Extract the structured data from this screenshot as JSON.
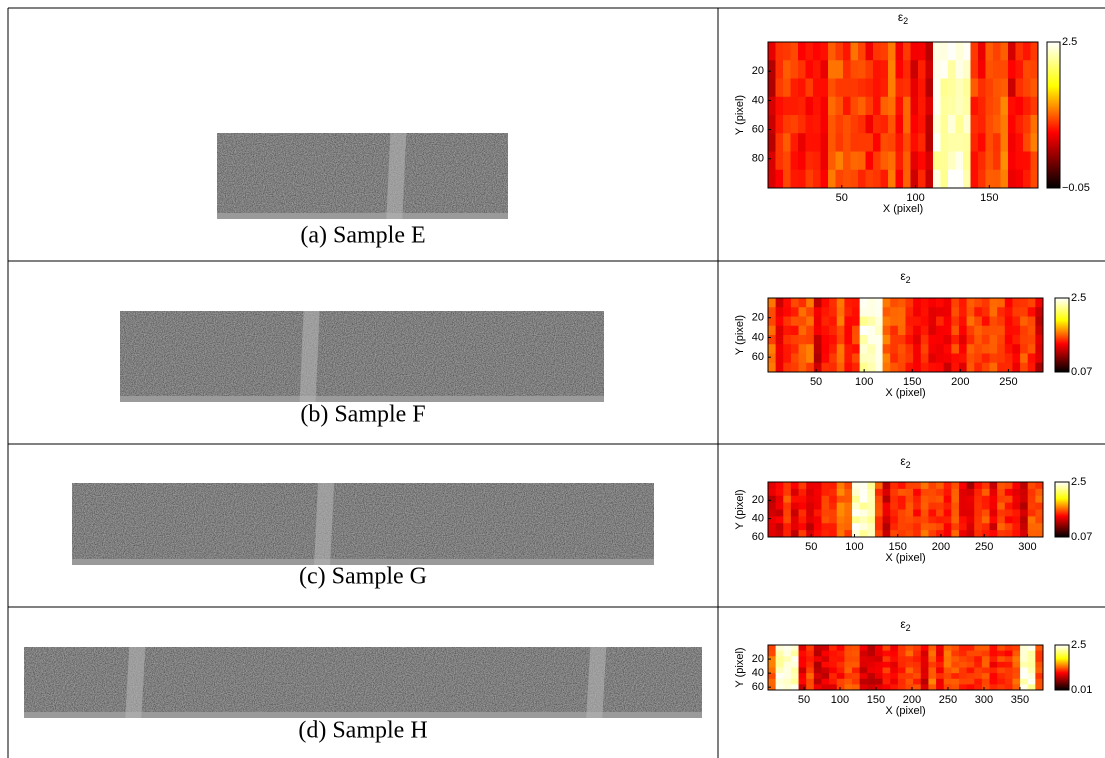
{
  "panels": [
    {
      "caption": "(a) Sample E",
      "heatmap": {
        "title": "ε",
        "title_sub": "2",
        "xlabel": "X (pixel)",
        "ylabel": "Y (pixel)",
        "xlim": [
          0,
          183
        ],
        "ylim": [
          0,
          100
        ],
        "xticks": [
          50,
          100,
          150
        ],
        "yticks": [
          20,
          40,
          60,
          80
        ],
        "colorbar_labels": [
          "2.5",
          "−0.05"
        ]
      }
    },
    {
      "caption": "(b) Sample F",
      "heatmap": {
        "title": "ε",
        "title_sub": "2",
        "xlabel": "X (pixel)",
        "ylabel": "Y (pixel)",
        "xlim": [
          0,
          286
        ],
        "ylim": [
          0,
          75
        ],
        "xticks": [
          50,
          100,
          150,
          200,
          250
        ],
        "yticks": [
          20,
          40,
          60
        ],
        "colorbar_labels": [
          "2.5",
          "0.07"
        ]
      }
    },
    {
      "caption": "(c) Sample G",
      "heatmap": {
        "title": "ε",
        "title_sub": "2",
        "xlabel": "X (pixel)",
        "ylabel": "Y (pixel)",
        "xlim": [
          0,
          318
        ],
        "ylim": [
          0,
          60
        ],
        "xticks": [
          50,
          100,
          150,
          200,
          250,
          300
        ],
        "yticks": [
          20,
          40,
          60
        ],
        "colorbar_labels": [
          "2.5",
          "0.07"
        ]
      }
    },
    {
      "caption": "(d) Sample H",
      "heatmap": {
        "title": "ε",
        "title_sub": "2",
        "xlabel": "X (pixel)",
        "ylabel": "Y (pixel)",
        "xlim": [
          0,
          382
        ],
        "ylim": [
          0,
          64
        ],
        "xticks": [
          50,
          100,
          150,
          200,
          250,
          300,
          350
        ],
        "yticks": [
          20,
          40,
          60
        ],
        "colorbar_labels": [
          "2.5",
          "0.01"
        ]
      }
    }
  ]
}
